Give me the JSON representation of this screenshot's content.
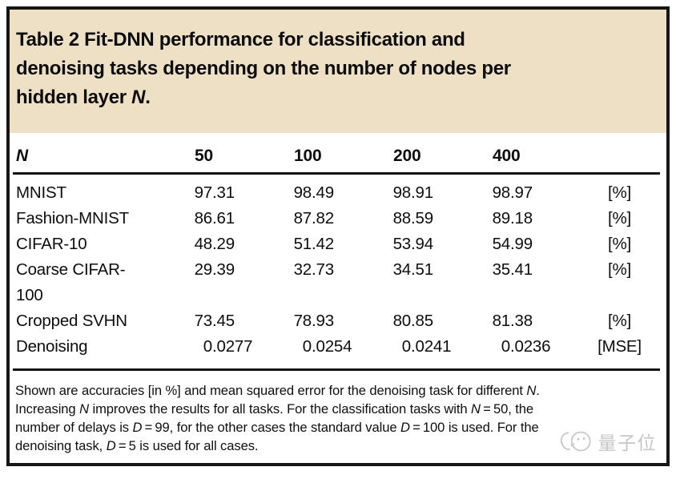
{
  "title": {
    "lines": [
      [
        {
          "t": "Table 2 Fit-DNN performance for classification and"
        }
      ],
      [
        {
          "t": "denoising tasks depending on the number of nodes per"
        }
      ],
      [
        {
          "t": "hidden layer "
        },
        {
          "t": "N",
          "italic": true
        },
        {
          "t": "."
        }
      ]
    ]
  },
  "table": {
    "header": {
      "n": "N",
      "columns": [
        "50",
        "100",
        "200",
        "400"
      ],
      "unit": ""
    },
    "rows": [
      {
        "label": "MNIST",
        "values": [
          "97.31",
          "98.49",
          "98.91",
          "98.97"
        ],
        "unit": "[%]"
      },
      {
        "label": "Fashion-MNIST",
        "values": [
          "86.61",
          "87.82",
          "88.59",
          "89.18"
        ],
        "unit": "[%]"
      },
      {
        "label": "CIFAR-10",
        "values": [
          "48.29",
          "51.42",
          "53.94",
          "54.99"
        ],
        "unit": "[%]"
      },
      {
        "label": "Coarse CIFAR-100",
        "label_lines": [
          "Coarse CIFAR-",
          "100"
        ],
        "values": [
          "29.39",
          "32.73",
          "34.51",
          "35.41"
        ],
        "unit": "[%]"
      },
      {
        "label": "Cropped SVHN",
        "values": [
          "73.45",
          "78.93",
          "80.85",
          "81.38"
        ],
        "unit": "[%]"
      },
      {
        "label": "Denoising",
        "values": [
          "0.0277",
          "0.0254",
          "0.0241",
          "0.0236"
        ],
        "unit": "[MSE]"
      }
    ]
  },
  "footnote": {
    "lines": [
      [
        {
          "t": "Shown are accuracies [in %] and mean squared error for the denoising task for different "
        },
        {
          "t": "N",
          "italic": true
        },
        {
          "t": "."
        }
      ],
      [
        {
          "t": "Increasing "
        },
        {
          "t": "N",
          "italic": true
        },
        {
          "t": " improves the results for all tasks. For the classification tasks with "
        },
        {
          "t": "N",
          "italic": true
        },
        {
          "t": " = 50, the"
        }
      ],
      [
        {
          "t": "number of delays is "
        },
        {
          "t": "D",
          "italic": true
        },
        {
          "t": " = 99, for the other cases the standard value "
        },
        {
          "t": "D",
          "italic": true
        },
        {
          "t": " = 100 is used. For the"
        }
      ],
      [
        {
          "t": "denoising task, "
        },
        {
          "t": "D",
          "italic": true
        },
        {
          "t": " = 5 is used for all cases."
        }
      ]
    ]
  },
  "watermark": {
    "text": "量子位"
  },
  "colors": {
    "banner_bg": "#ede0c5",
    "frame_border": "#161616",
    "text": "#0e0e0e",
    "watermark": "#c6c6c6"
  }
}
